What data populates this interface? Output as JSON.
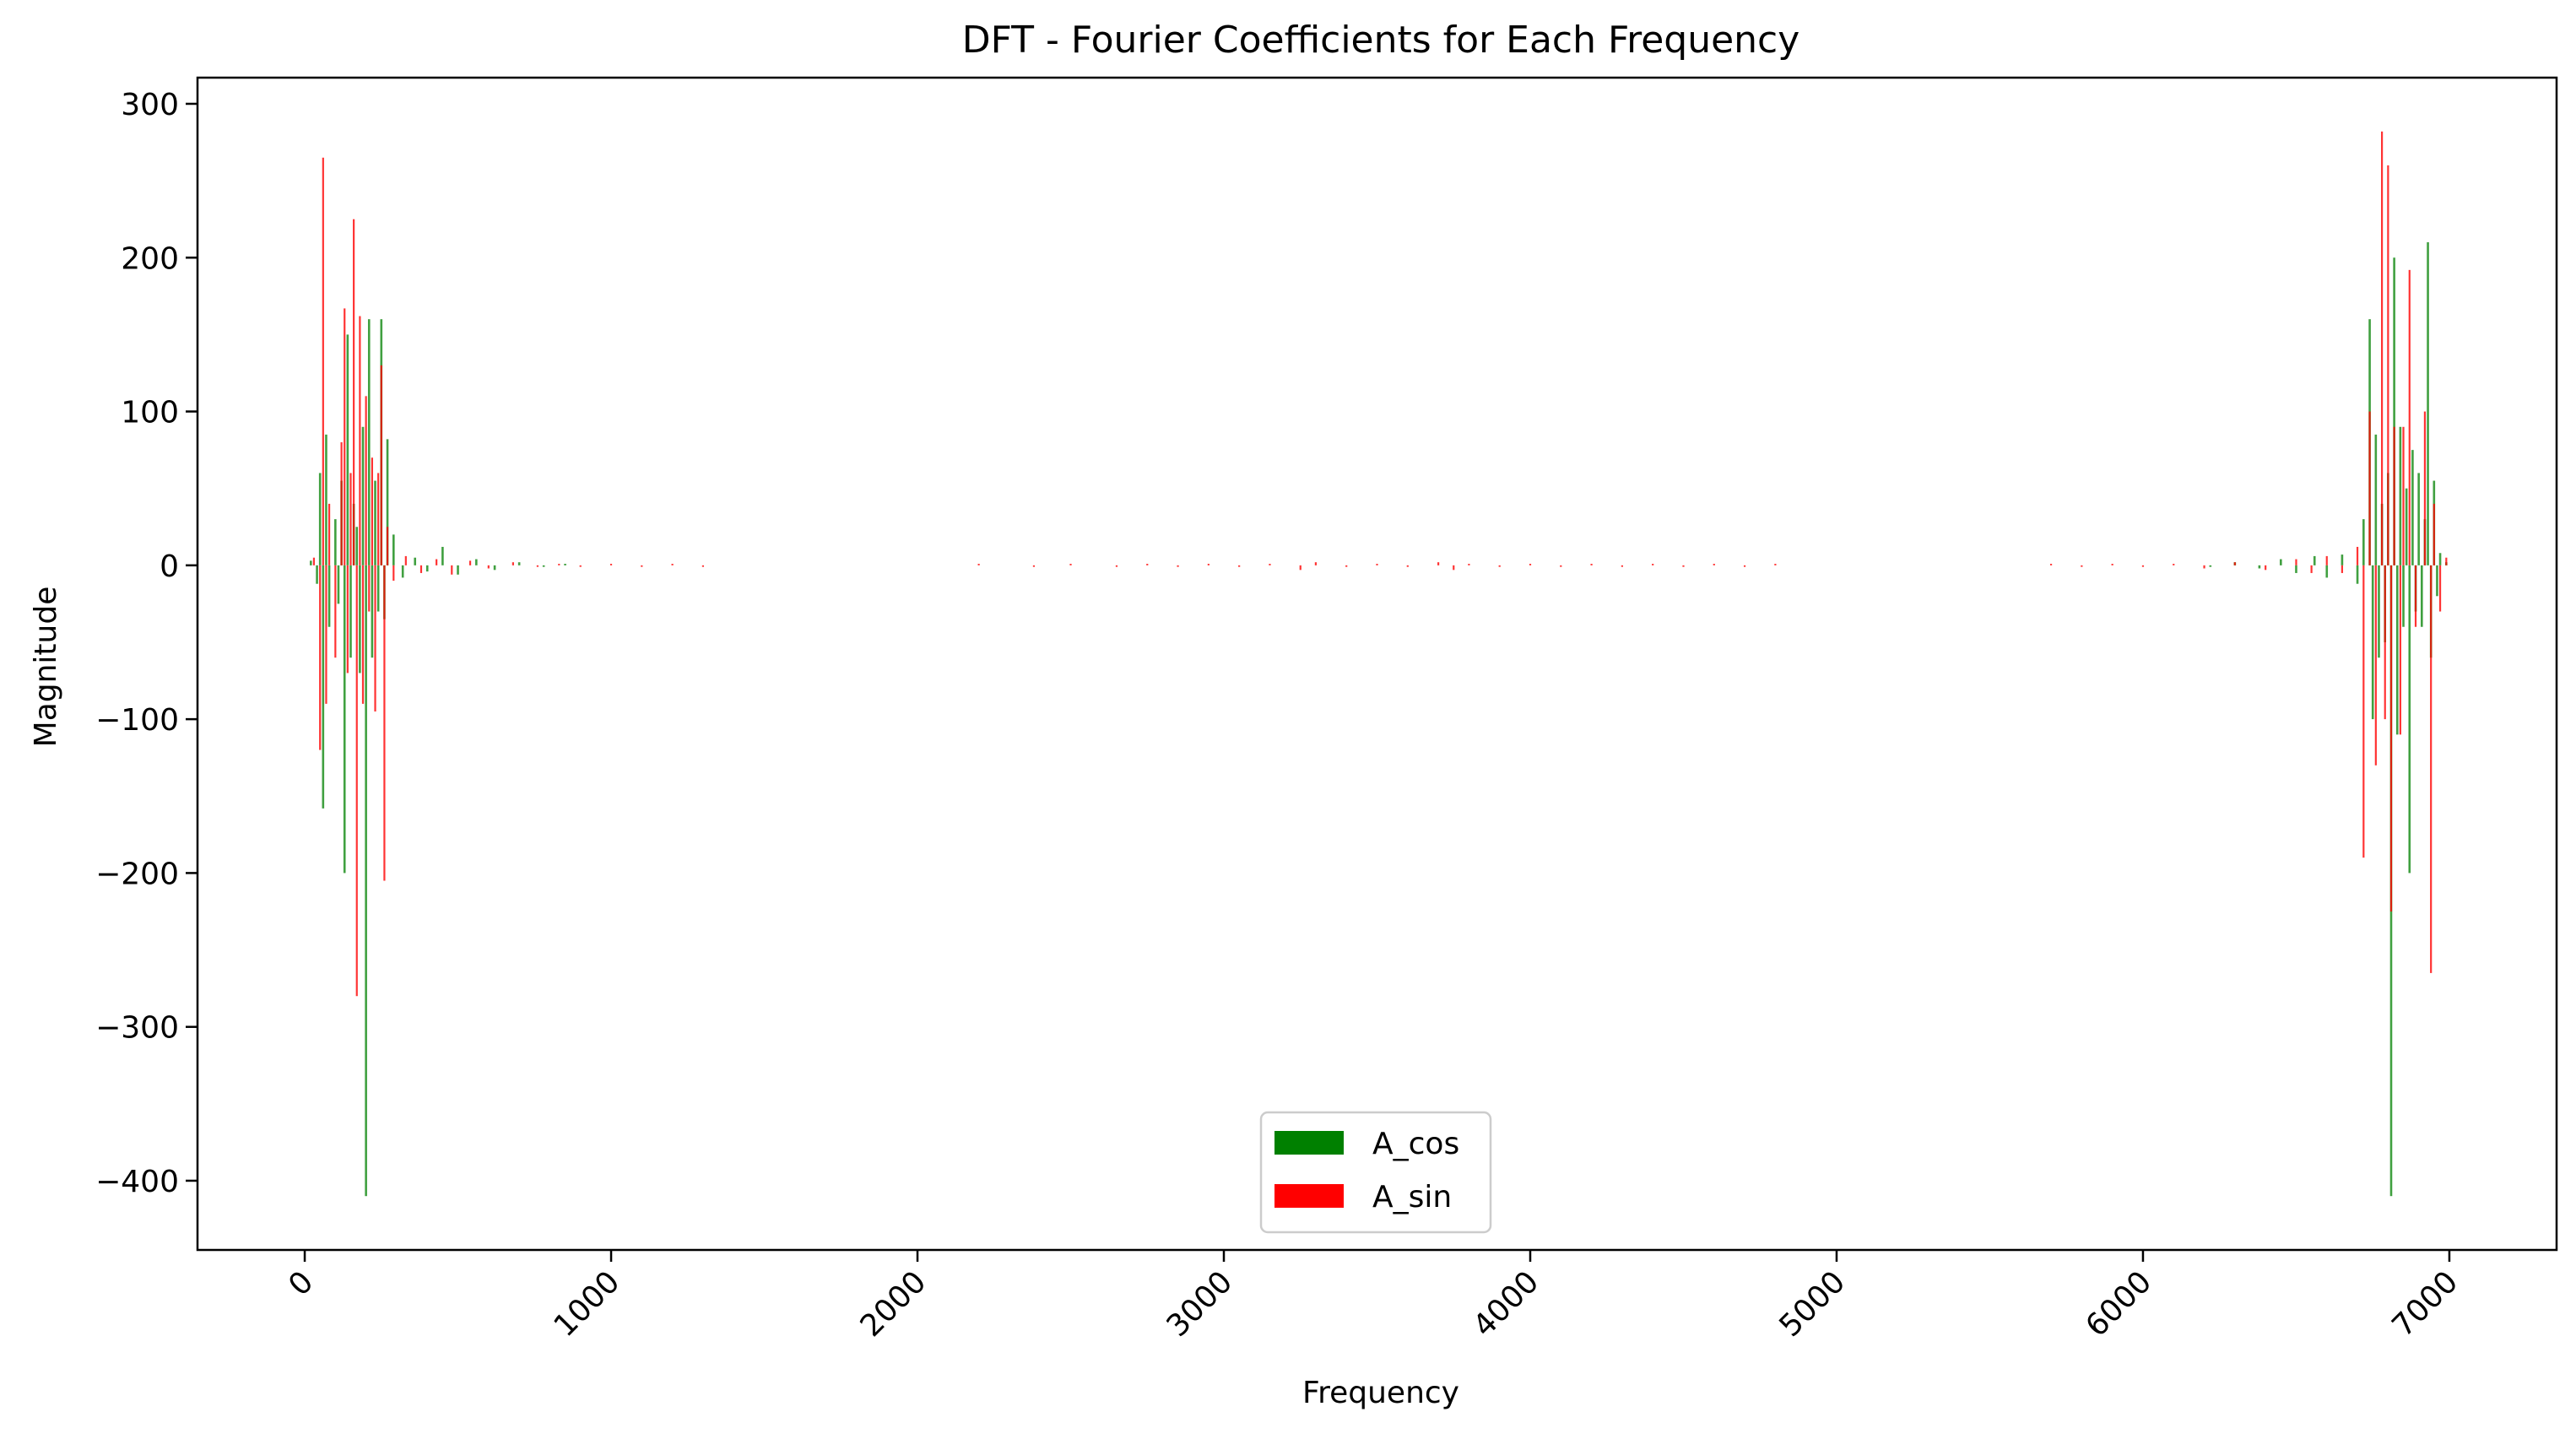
{
  "chart_data": {
    "type": "bar",
    "title": "DFT - Fourier Coefficients for Each Frequency",
    "xlabel": "Frequency",
    "ylabel": "Magnitude",
    "xlim": [
      -350,
      7350
    ],
    "ylim": [
      -445,
      317
    ],
    "xticks": [
      {
        "value": 0,
        "label": "0"
      },
      {
        "value": 1000,
        "label": "1000"
      },
      {
        "value": 2000,
        "label": "2000"
      },
      {
        "value": 3000,
        "label": "3000"
      },
      {
        "value": 4000,
        "label": "4000"
      },
      {
        "value": 5000,
        "label": "5000"
      },
      {
        "value": 6000,
        "label": "6000"
      },
      {
        "value": 7000,
        "label": "7000"
      }
    ],
    "yticks": [
      {
        "value": 300,
        "label": "300"
      },
      {
        "value": 200,
        "label": "200"
      },
      {
        "value": 100,
        "label": "100"
      },
      {
        "value": 0,
        "label": "0"
      },
      {
        "value": -100,
        "label": "−100"
      },
      {
        "value": -200,
        "label": "−200"
      },
      {
        "value": -300,
        "label": "−300"
      },
      {
        "value": -400,
        "label": "−400"
      }
    ],
    "grid": false,
    "legend": {
      "placement": "lower center"
    },
    "series": [
      {
        "name": "A_cos",
        "color": "#008000",
        "x": [
          20,
          40,
          50,
          60,
          70,
          80,
          100,
          110,
          120,
          130,
          140,
          150,
          160,
          170,
          180,
          190,
          200,
          210,
          220,
          230,
          240,
          250,
          260,
          270,
          290,
          320,
          360,
          400,
          450,
          500,
          560,
          620,
          700,
          780,
          850,
          6220,
          6300,
          6380,
          6450,
          6500,
          6560,
          6600,
          6650,
          6700,
          6720,
          6740,
          6750,
          6760,
          6770,
          6780,
          6790,
          6800,
          6810,
          6820,
          6830,
          6840,
          6850,
          6860,
          6870,
          6880,
          6890,
          6900,
          6910,
          6920,
          6930,
          6940,
          6950,
          6960,
          6970,
          6990
        ],
        "values": [
          3,
          -12,
          60,
          -158,
          85,
          -40,
          30,
          -25,
          55,
          -200,
          150,
          -60,
          40,
          25,
          -70,
          90,
          -410,
          160,
          -60,
          55,
          -30,
          160,
          -35,
          82,
          20,
          -8,
          5,
          -4,
          12,
          -6,
          4,
          -3,
          2,
          -1,
          1,
          -1,
          2,
          -2,
          4,
          -5,
          6,
          -8,
          7,
          -12,
          30,
          160,
          -100,
          85,
          -60,
          40,
          -50,
          60,
          -410,
          200,
          -110,
          90,
          -40,
          50,
          -200,
          75,
          -30,
          60,
          -40,
          30,
          210,
          -60,
          55,
          -20,
          8,
          2
        ]
      },
      {
        "name": "A_sin",
        "color": "#ff0000",
        "x": [
          30,
          50,
          60,
          70,
          80,
          100,
          120,
          130,
          140,
          150,
          160,
          170,
          180,
          190,
          200,
          210,
          220,
          230,
          240,
          250,
          260,
          270,
          290,
          330,
          380,
          430,
          480,
          540,
          600,
          680,
          760,
          830,
          900,
          1000,
          1100,
          1200,
          1300,
          2200,
          2380,
          2500,
          2650,
          2750,
          2850,
          2950,
          3050,
          3150,
          3250,
          3300,
          3400,
          3500,
          3600,
          3700,
          3750,
          3800,
          3900,
          4000,
          4100,
          4200,
          4300,
          4400,
          4500,
          4600,
          4700,
          4800,
          5700,
          5800,
          5900,
          6000,
          6100,
          6200,
          6300,
          6400,
          6500,
          6550,
          6600,
          6650,
          6700,
          6720,
          6740,
          6760,
          6780,
          6790,
          6800,
          6810,
          6820,
          6840,
          6850,
          6870,
          6890,
          6920,
          6940,
          6950,
          6970,
          6990
        ],
        "values": [
          5,
          -120,
          265,
          -90,
          40,
          -60,
          80,
          167,
          -70,
          60,
          225,
          -280,
          162,
          -90,
          110,
          -30,
          70,
          -95,
          60,
          130,
          -205,
          25,
          -10,
          6,
          -5,
          4,
          -6,
          3,
          -2,
          2,
          -1,
          1,
          -1,
          1,
          -1,
          1,
          -1,
          1,
          -1,
          1,
          -1,
          1,
          -1,
          1,
          -1,
          1,
          -3,
          2,
          -1,
          1,
          -1,
          2,
          -3,
          1,
          -1,
          1,
          -1,
          1,
          -1,
          1,
          -1,
          1,
          -1,
          1,
          1,
          -1,
          1,
          -1,
          1,
          -2,
          2,
          -3,
          4,
          -5,
          6,
          -5,
          12,
          -190,
          100,
          -130,
          282,
          -100,
          260,
          -225,
          90,
          -110,
          90,
          192,
          -40,
          100,
          -265,
          40,
          -30,
          5
        ]
      }
    ]
  }
}
